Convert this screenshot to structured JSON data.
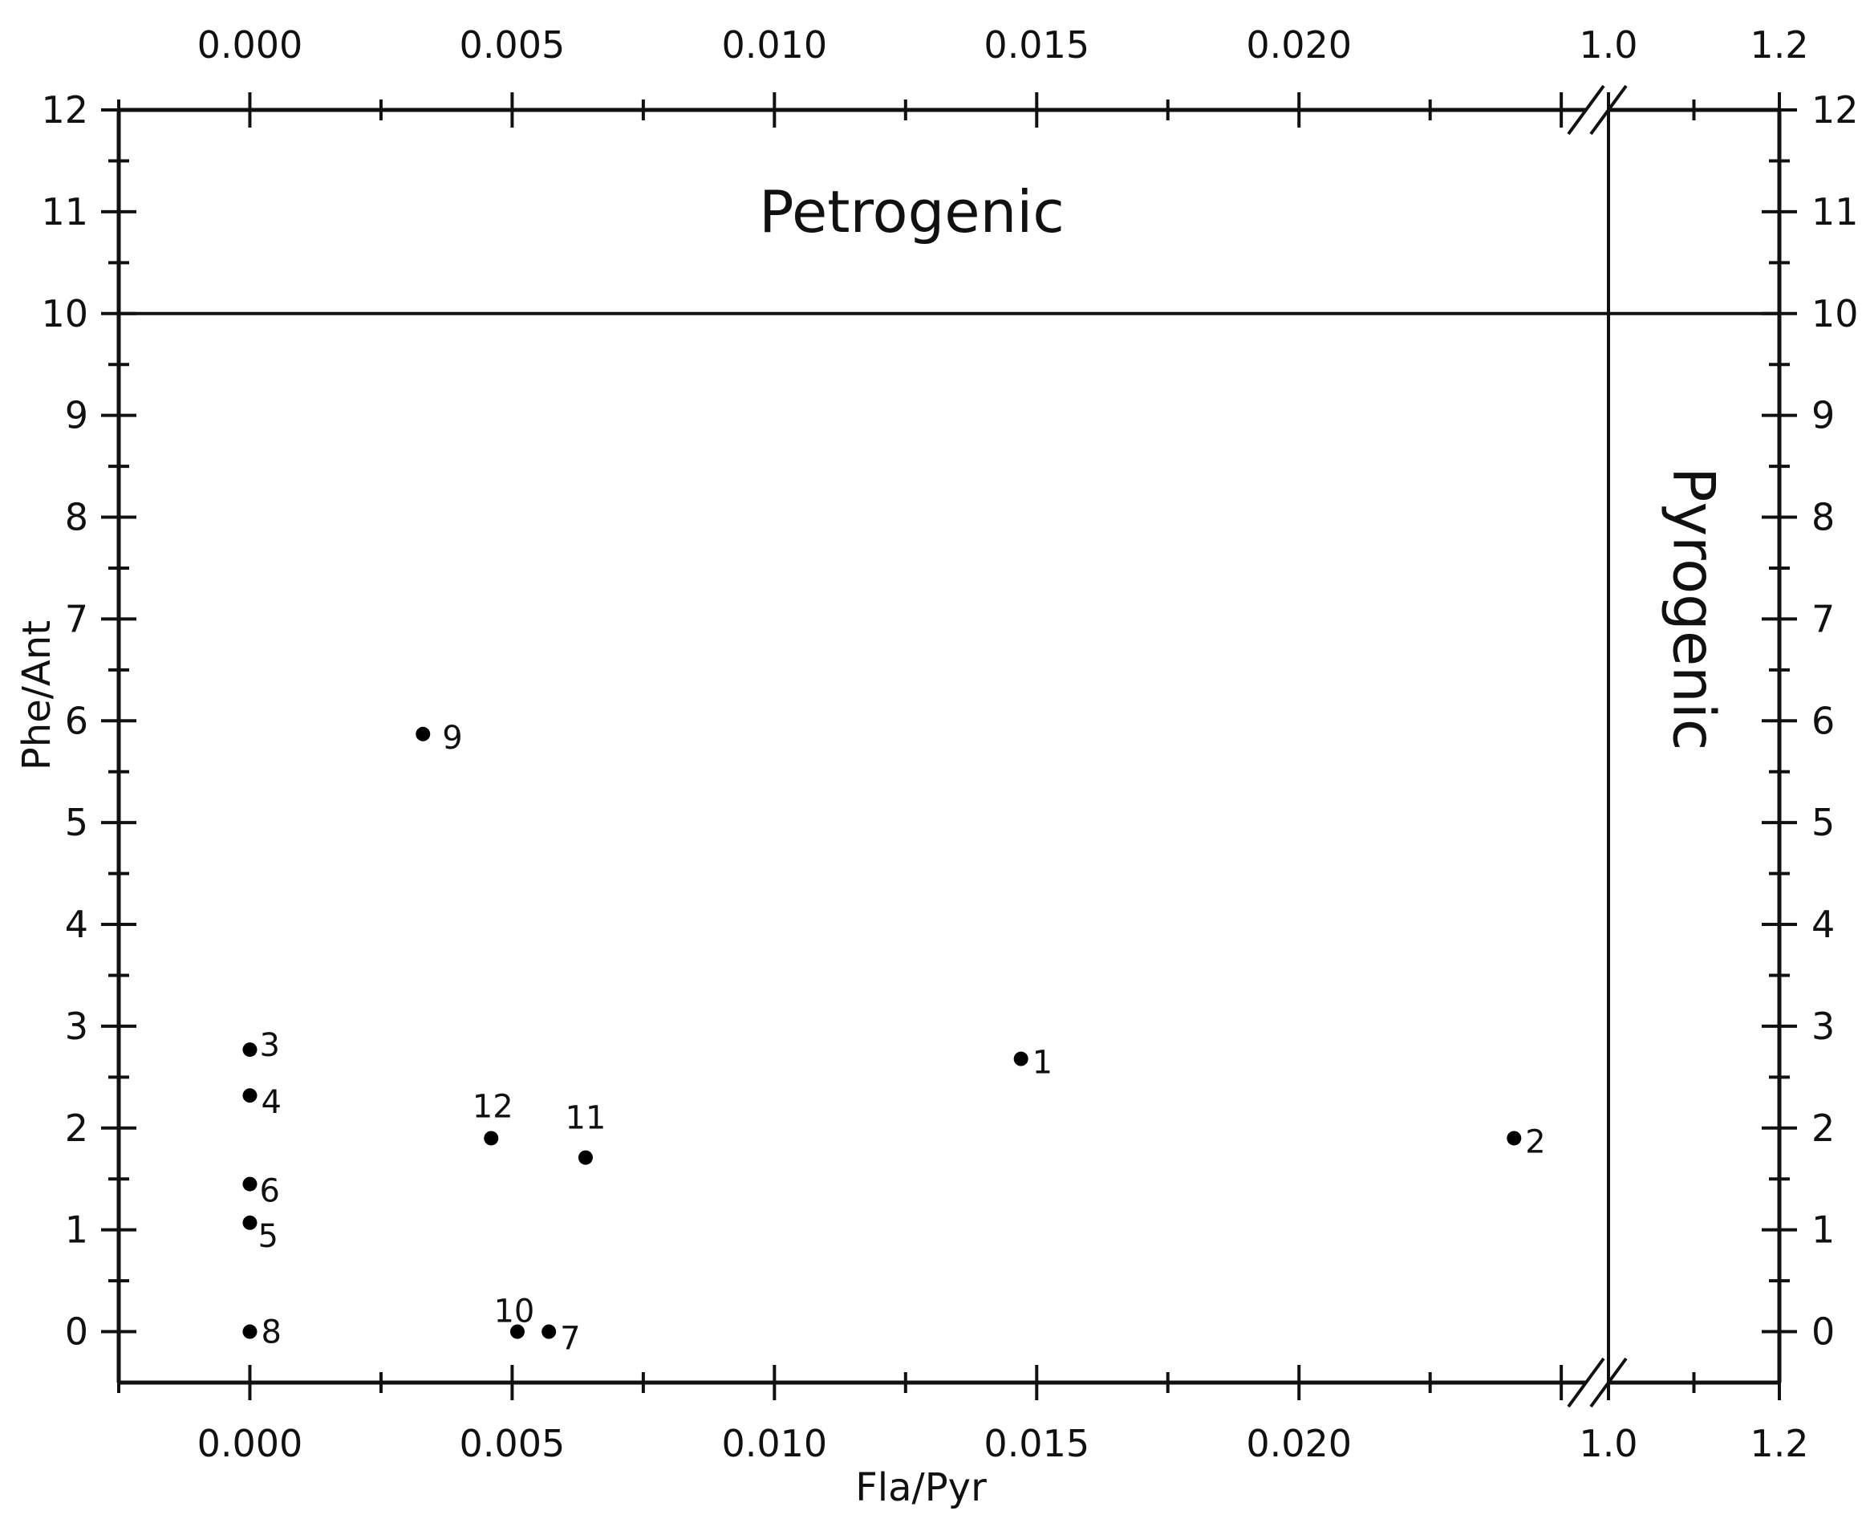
{
  "chart_data": {
    "type": "scatter",
    "title": "",
    "xlabel": "Fla/Pyr",
    "ylabel": "Phe/Ant",
    "x_axis_segments": [
      {
        "range": [
          -0.0025,
          0.0259
        ],
        "ticks": [
          0.0,
          0.005,
          0.01,
          0.015,
          0.02
        ],
        "tick_labels": [
          "0.000",
          "0.005",
          "0.010",
          "0.015",
          "0.020"
        ]
      },
      {
        "range": [
          1.0,
          1.2
        ],
        "ticks": [
          1.0,
          1.2
        ],
        "tick_labels": [
          "1.0",
          "1.2"
        ]
      }
    ],
    "axis_break": "between 0.0259 and 1.0",
    "ylim": [
      -0.5,
      12
    ],
    "y_ticks": [
      0,
      1,
      2,
      3,
      4,
      5,
      6,
      7,
      8,
      9,
      10,
      11,
      12
    ],
    "y_tick_labels": [
      "0",
      "1",
      "2",
      "3",
      "4",
      "5",
      "6",
      "7",
      "8",
      "9",
      "10",
      "11",
      "12"
    ],
    "mirrored_axes": true,
    "grid": false,
    "regions": [
      {
        "label": "Petrogenic",
        "boundary": "Phe/Ant = 10"
      },
      {
        "label": "Pyrogenic",
        "boundary": "Fla/Pyr = 1.0"
      }
    ],
    "points": [
      {
        "label": "1",
        "x": 0.0147,
        "y": 2.68
      },
      {
        "label": "2",
        "x": 0.0241,
        "y": 1.9
      },
      {
        "label": "3",
        "x": 0.0,
        "y": 2.77
      },
      {
        "label": "4",
        "x": 0.0,
        "y": 2.32
      },
      {
        "label": "5",
        "x": 0.0,
        "y": 1.07
      },
      {
        "label": "6",
        "x": 0.0,
        "y": 1.45
      },
      {
        "label": "7",
        "x": 0.0057,
        "y": 0.0
      },
      {
        "label": "8",
        "x": 0.0,
        "y": 0.0
      },
      {
        "label": "9",
        "x": 0.0033,
        "y": 5.87
      },
      {
        "label": "10",
        "x": 0.0051,
        "y": 0.0
      },
      {
        "label": "11",
        "x": 0.0064,
        "y": 1.71
      },
      {
        "label": "12",
        "x": 0.0046,
        "y": 1.9
      }
    ]
  }
}
